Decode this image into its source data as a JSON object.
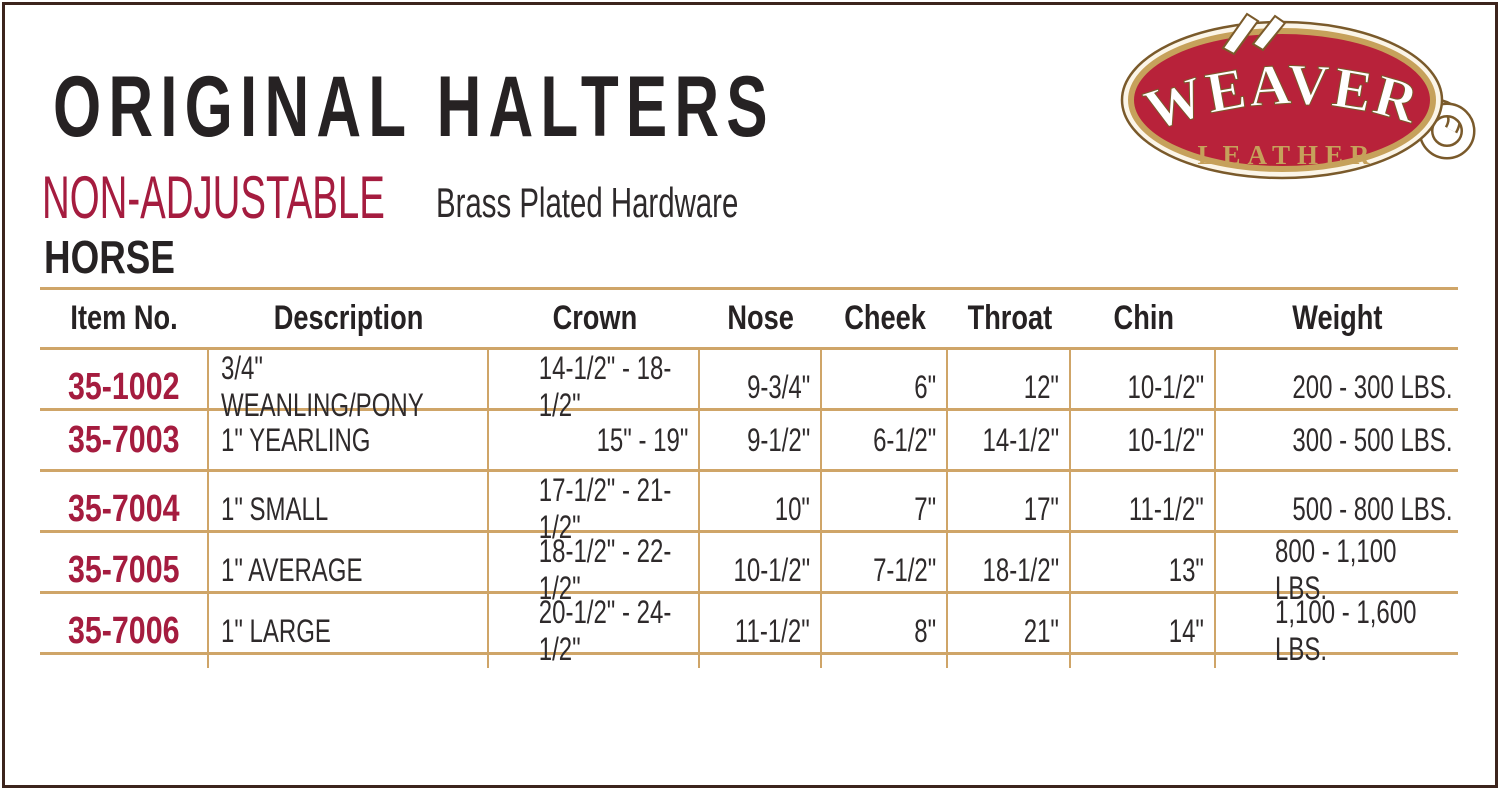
{
  "header": {
    "title": "ORIGINAL HALTERS",
    "category": "NON-ADJUSTABLE",
    "hardware_note": "Brass Plated Hardware",
    "section": "HORSE"
  },
  "logo": {
    "brand": "WEAVER",
    "brand_sub": "LEATHER"
  },
  "colors": {
    "accent_red": "#A51C3F",
    "table_line_tan": "#CFA568",
    "text_dark": "#262223",
    "logo_red": "#B8223A",
    "logo_gold": "#C6A15B",
    "logo_outline_brown": "#7A5A2B",
    "frame_brown": "#3C241C"
  },
  "table": {
    "columns": [
      "Item No.",
      "Description",
      "Crown",
      "Nose",
      "Cheek",
      "Throat",
      "Chin",
      "Weight"
    ],
    "rows": [
      {
        "item_no": "35-1002",
        "description": "3/4\" WEANLING/PONY",
        "crown": "14-1/2\" - 18-1/2\"",
        "nose": "9-3/4\"",
        "cheek": "6\"",
        "throat": "12\"",
        "chin": "10-1/2\"",
        "weight": "200 - 300 LBS."
      },
      {
        "item_no": "35-7003",
        "description": "1\" YEARLING",
        "crown": "15\" - 19\"",
        "nose": "9-1/2\"",
        "cheek": "6-1/2\"",
        "throat": "14-1/2\"",
        "chin": "10-1/2\"",
        "weight": "300 - 500 LBS."
      },
      {
        "item_no": "35-7004",
        "description": "1\" SMALL",
        "crown": "17-1/2\" - 21-1/2\"",
        "nose": "10\"",
        "cheek": "7\"",
        "throat": "17\"",
        "chin": "11-1/2\"",
        "weight": "500 - 800 LBS."
      },
      {
        "item_no": "35-7005",
        "description": "1\" AVERAGE",
        "crown": "18-1/2\" - 22-1/2\"",
        "nose": "10-1/2\"",
        "cheek": "7-1/2\"",
        "throat": "18-1/2\"",
        "chin": "13\"",
        "weight": "800 - 1,100 LBS."
      },
      {
        "item_no": "35-7006",
        "description": "1\" LARGE",
        "crown": "20-1/2\" - 24-1/2\"",
        "nose": "11-1/2\"",
        "cheek": "8\"",
        "throat": "21\"",
        "chin": "14\"",
        "weight": "1,100 - 1,600 LBS."
      }
    ]
  }
}
